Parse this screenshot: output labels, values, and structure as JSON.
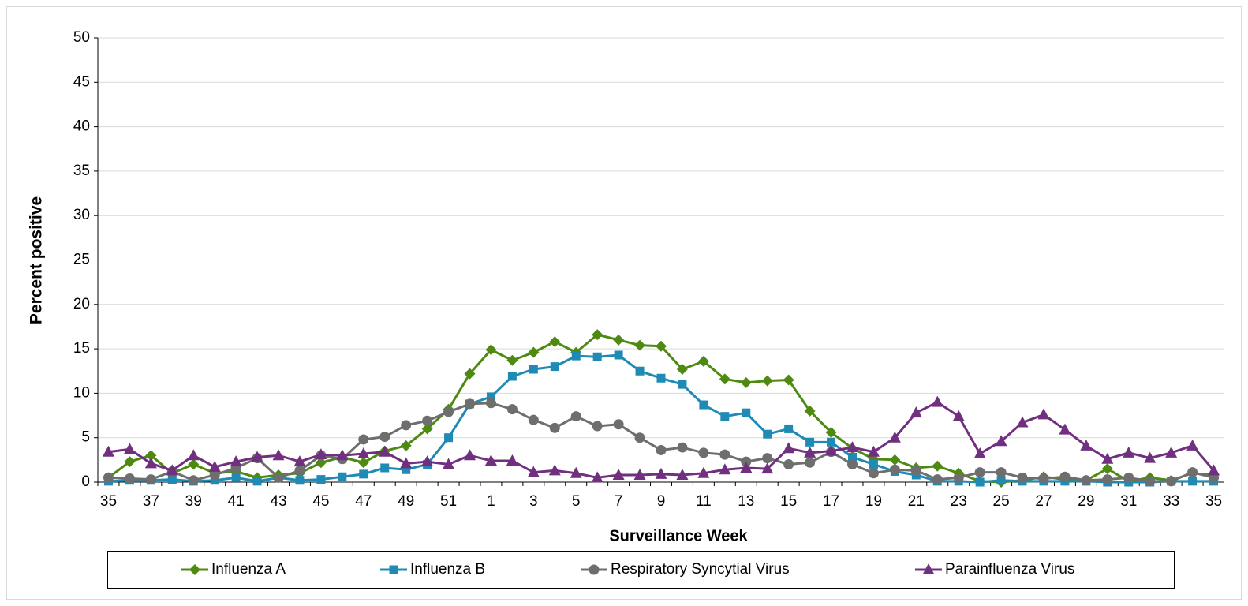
{
  "chart_data": {
    "type": "line",
    "y_label": "Percent positive",
    "x_label": "Surveillance Week",
    "categories": [
      "35",
      null,
      "37",
      null,
      "39",
      null,
      "41",
      null,
      "43",
      null,
      "45",
      null,
      "47",
      null,
      "49",
      null,
      "51",
      null,
      "1",
      null,
      "3",
      null,
      "5",
      null,
      "7",
      null,
      "9",
      null,
      "11",
      null,
      "13",
      null,
      "15",
      null,
      "17",
      null,
      "19",
      null,
      "21",
      null,
      "23",
      null,
      "25",
      null,
      "27",
      null,
      "29",
      null,
      "31",
      null,
      "33",
      null,
      "35"
    ],
    "ylim": [
      0,
      50
    ],
    "yticks": [
      0,
      5,
      10,
      15,
      20,
      25,
      30,
      35,
      40,
      45,
      50
    ],
    "grid": true,
    "series": [
      {
        "name": "Influenza A",
        "color": "#4e8a12",
        "marker": "diamond",
        "values": [
          0.5,
          2.3,
          3.0,
          1.0,
          2.0,
          1.0,
          1.2,
          0.5,
          0.8,
          1.0,
          2.2,
          2.8,
          2.2,
          3.5,
          4.1,
          6.0,
          8.2,
          12.2,
          14.9,
          13.7,
          14.6,
          15.8,
          14.6,
          16.6,
          16.0,
          15.4,
          15.3,
          12.7,
          13.6,
          11.6,
          11.2,
          11.4,
          11.5,
          8.0,
          5.6,
          3.8,
          2.6,
          2.5,
          1.6,
          1.8,
          1.0,
          0.1,
          0,
          0.2,
          0.6,
          0.3,
          0.2,
          1.5,
          0.1,
          0.5,
          0.2,
          1.0,
          0.8
        ]
      },
      {
        "name": "Influenza B",
        "color": "#1f8bb5",
        "marker": "square",
        "values": [
          0.1,
          0.2,
          0.2,
          0.3,
          0.1,
          0.2,
          0.5,
          0.1,
          0.5,
          0.2,
          0.3,
          0.6,
          0.9,
          1.6,
          1.4,
          2.0,
          5.0,
          8.8,
          9.6,
          11.9,
          12.7,
          13.0,
          14.2,
          14.1,
          14.3,
          12.5,
          11.7,
          11.0,
          8.7,
          7.4,
          7.8,
          5.4,
          6.0,
          4.5,
          4.5,
          2.8,
          2.0,
          1.2,
          0.8,
          0.1,
          0.1,
          0,
          0.2,
          0.1,
          0.1,
          0.1,
          0.1,
          0,
          0,
          0,
          0.1,
          0.1,
          0.1
        ]
      },
      {
        "name": "Respiratory Syncytial Virus",
        "color": "#6e6e6e",
        "marker": "circle",
        "values": [
          0.5,
          0.4,
          0.3,
          1.2,
          0.2,
          0.8,
          1.6,
          2.7,
          0.5,
          1.3,
          3.0,
          2.6,
          4.8,
          5.1,
          6.4,
          6.9,
          7.9,
          8.8,
          8.9,
          8.2,
          7.0,
          6.1,
          7.4,
          6.3,
          6.5,
          5.0,
          3.6,
          3.9,
          3.3,
          3.1,
          2.3,
          2.7,
          2.0,
          2.2,
          3.4,
          2.0,
          1.0,
          1.4,
          1.3,
          0.3,
          0.5,
          1.1,
          1.1,
          0.5,
          0.4,
          0.6,
          0.2,
          0.3,
          0.5,
          0.1,
          0.1,
          1.1,
          0.5
        ]
      },
      {
        "name": "Parainfluenza Virus",
        "color": "#71307f",
        "marker": "triangle",
        "values": [
          3.4,
          3.7,
          2.1,
          1.3,
          3.0,
          1.7,
          2.3,
          2.8,
          3.0,
          2.3,
          3.1,
          3.0,
          3.2,
          3.4,
          2.1,
          2.3,
          2.0,
          3.0,
          2.4,
          2.4,
          1.1,
          1.3,
          1.0,
          0.5,
          0.8,
          0.8,
          0.9,
          0.8,
          1.0,
          1.4,
          1.6,
          1.5,
          3.8,
          3.3,
          3.5,
          3.9,
          3.4,
          5.0,
          7.8,
          9.0,
          7.4,
          3.2,
          4.6,
          6.7,
          7.6,
          5.9,
          4.1,
          2.6,
          3.3,
          2.7,
          3.3,
          4.1,
          1.3
        ]
      }
    ]
  }
}
